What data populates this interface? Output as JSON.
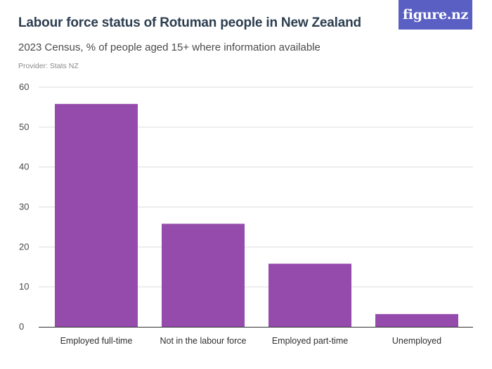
{
  "header": {
    "title": "Labour force status of Rotuman people in New Zealand",
    "subtitle": "2023 Census, % of people aged 15+ where information available",
    "provider": "Provider: Stats NZ",
    "logo_text": "figure.nz"
  },
  "colors": {
    "bar": "#954bab",
    "logo_background": "#5a5fc3",
    "grid": "#dddddd",
    "axis": "#333333"
  },
  "chart_data": {
    "type": "bar",
    "title": "Labour force status of Rotuman people in New Zealand",
    "subtitle": "2023 Census, % of people aged 15+ where information available",
    "categories": [
      "Employed full-time",
      "Not in the labour force",
      "Employed part-time",
      "Unemployed"
    ],
    "values": [
      55.8,
      25.8,
      15.8,
      3.2
    ],
    "ylim": [
      0,
      60
    ],
    "yticks": [
      0,
      10,
      20,
      30,
      40,
      50,
      60
    ],
    "xlabel": "",
    "ylabel": "",
    "grid": true,
    "legend": "none"
  }
}
